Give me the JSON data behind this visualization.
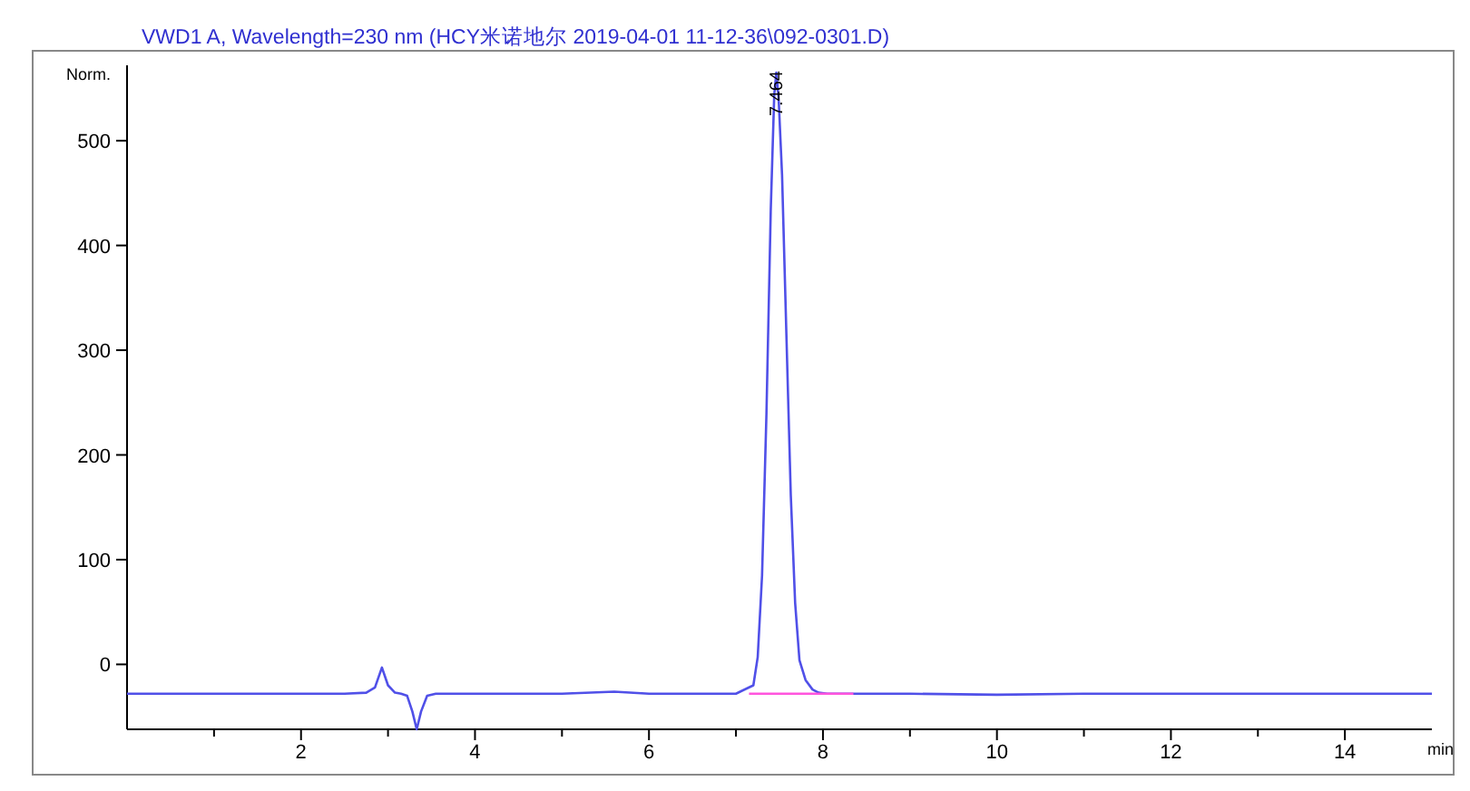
{
  "chart_data": {
    "type": "line",
    "title": "VWD1 A, Wavelength=230 nm (HCY米诺地尔 2019-04-01 11-12-36\\092-0301.D)",
    "xlabel": "min",
    "ylabel": "Norm.",
    "xlim": [
      0,
      15
    ],
    "ylim": [
      -62,
      572
    ],
    "xticks": [
      {
        "value": 1,
        "label": null
      },
      2,
      {
        "value": 3,
        "label": null
      },
      4,
      {
        "value": 5,
        "label": null
      },
      6,
      {
        "value": 7,
        "label": null
      },
      8,
      {
        "value": 9,
        "label": null
      },
      10,
      {
        "value": 11,
        "label": null
      },
      12,
      {
        "value": 13,
        "label": null
      },
      14
    ],
    "yticks": [
      0,
      100,
      200,
      300,
      400,
      500
    ],
    "grid": false,
    "marker": "none",
    "line_style": "solid",
    "series": [
      {
        "color": "#5050e8",
        "x": [
          0,
          0.5,
          1,
          1.5,
          2,
          2.5,
          2.75,
          2.85,
          2.93,
          3.0,
          3.08,
          3.15,
          3.22,
          3.28,
          3.33,
          3.38,
          3.45,
          3.55,
          4,
          5,
          5.6,
          6,
          7,
          7.2,
          7.25,
          7.3,
          7.35,
          7.4,
          7.44,
          7.464,
          7.49,
          7.53,
          7.58,
          7.63,
          7.68,
          7.73,
          7.8,
          7.88,
          7.95,
          8.05,
          8.2,
          9,
          10,
          11,
          12,
          13,
          14,
          15
        ],
        "values": [
          -28,
          -28,
          -28,
          -28,
          -28,
          -28,
          -27,
          -22,
          -3,
          -20,
          -27,
          -28,
          -30,
          -45,
          -62,
          -45,
          -30,
          -28,
          -28,
          -28,
          -26,
          -28,
          -28,
          -20,
          7,
          85,
          238,
          434,
          544,
          565,
          541,
          467,
          314,
          162,
          59,
          4,
          -15,
          -24,
          -27,
          -28,
          -28,
          -28,
          -29,
          -28,
          -28,
          -28,
          -28,
          -28
        ]
      },
      {
        "color": "#ff55dd",
        "x": [
          7.15,
          8.35
        ],
        "values": [
          -28,
          -28
        ]
      }
    ],
    "annotations": [
      {
        "text": "7.464",
        "x": 7.464,
        "y": 565
      }
    ]
  }
}
